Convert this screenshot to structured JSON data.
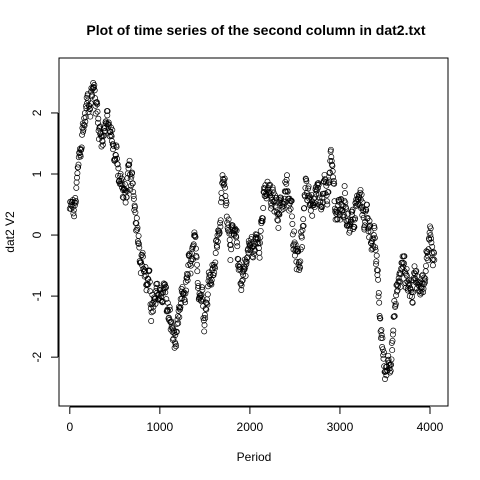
{
  "chart_data": {
    "type": "scatter",
    "title": "Plot of time series of the second column in dat2.txt",
    "xlabel": "Period",
    "ylabel": "dat2 V2",
    "xlim": [
      -120,
      4200
    ],
    "ylim": [
      -2.8,
      2.9
    ],
    "x_ticks": [
      0,
      1000,
      2000,
      3000,
      4000
    ],
    "y_ticks": [
      -2,
      -1,
      0,
      1,
      2
    ],
    "x_tick_labels": [
      "0",
      "1000",
      "2000",
      "3000",
      "4000"
    ],
    "y_tick_labels": [
      "-2",
      "-1",
      "0",
      "1",
      "2"
    ],
    "grid": false,
    "marker": "open-circle",
    "color": "#000000",
    "n_points": 4050,
    "series": [
      {
        "x": [
          0,
          50,
          100,
          150,
          200,
          250,
          300,
          350,
          400,
          450,
          500,
          550,
          600,
          650,
          700,
          750,
          800,
          850,
          900,
          950,
          1000,
          1050,
          1100,
          1150,
          1200,
          1250,
          1300,
          1350,
          1400,
          1450,
          1500,
          1550,
          1600,
          1650,
          1700,
          1750,
          1800,
          1850,
          1900,
          1950,
          2000,
          2050,
          2100,
          2150,
          2200,
          2250,
          2300,
          2350,
          2400,
          2450,
          2500,
          2550,
          2600,
          2650,
          2700,
          2750,
          2800,
          2850,
          2900,
          2950,
          3000,
          3050,
          3100,
          3150,
          3200,
          3250,
          3300,
          3350,
          3400,
          3450,
          3500,
          3550,
          3600,
          3650,
          3700,
          3750,
          3800,
          3850,
          3900,
          3950,
          4000,
          4050
        ],
        "values": [
          0.4,
          0.3,
          1.0,
          1.8,
          2.2,
          2.5,
          2.1,
          1.7,
          1.9,
          1.6,
          1.3,
          1.1,
          0.6,
          0.8,
          0.6,
          0.3,
          -0.2,
          -0.7,
          -1.1,
          -1.3,
          -1.0,
          -0.8,
          -1.4,
          -1.7,
          -1.8,
          -1.2,
          -0.8,
          -0.6,
          -0.5,
          -0.8,
          -1.0,
          -0.7,
          -0.3,
          0.0,
          0.8,
          0.5,
          0.0,
          -0.4,
          -0.7,
          -0.4,
          -0.2,
          -0.3,
          0.2,
          0.5,
          0.6,
          0.4,
          0.5,
          0.6,
          0.7,
          0.3,
          0.0,
          -0.2,
          0.3,
          0.7,
          0.5,
          0.4,
          0.2,
          0.7,
          1.0,
          0.5,
          0.3,
          0.6,
          0.4,
          0.2,
          0.5,
          0.4,
          0.3,
          0.2,
          -0.5,
          -1.5,
          -2.3,
          -1.8,
          -1.4,
          -0.8,
          -0.5,
          -0.7,
          -0.9,
          -0.6,
          -0.5,
          -0.8,
          0.2,
          -0.4
        ]
      }
    ]
  }
}
